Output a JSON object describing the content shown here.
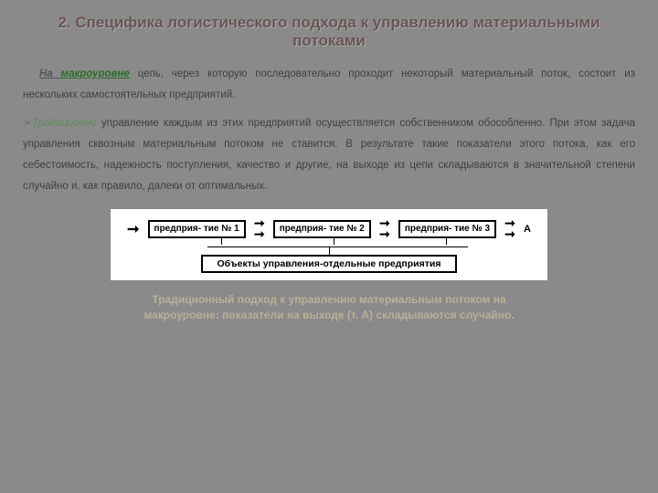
{
  "title": "2. Специфика логистического подхода к управлению материальными потоками",
  "para1_prefix": "На ",
  "para1_macro": "макроуровне",
  "para1_rest": " цепь, через которую последовательно проходит некоторый материальный поток, состоит из нескольких самостоятельных предприятий.",
  "para2_trad": "Традиционно",
  "para2_rest": " управление каждым из этих предприятий осуществляется собственником обособленно. При этом задача управления сквозным материальным потоком не ставится. В результате такие показатели этого потока, как его себестоимость, надежность поступления, качество и другие, на выходе из цепи складываются в значительной степени случайно и, как правило, далеки от оптимальных.",
  "diagram": {
    "boxes": [
      "предприя-\nтие № 1",
      "предприя-\nтие № 2",
      "предприя-\nтие № 3"
    ],
    "point_label": "А",
    "objects_label": "Объекты управления-отдельные предприятия",
    "box_border_color": "#000000",
    "background": "#ffffff"
  },
  "caption_line1": "Традиционный подход к управлению материальным потоком на",
  "caption_line2": "макроуровне: показатели на выходе (т. А) складываются случайно.",
  "colors": {
    "page_bg": "#8a8a8a",
    "title_color": "#6a5555",
    "caption_color": "#b8b097",
    "trad_color": "#5a8a5a"
  }
}
